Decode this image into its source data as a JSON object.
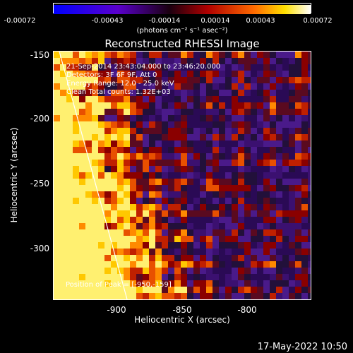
{
  "colorbar": {
    "ticks": [
      "-0.00072",
      "-0.00043",
      "-0.00014",
      "0.00014",
      "0.00043",
      "0.00072"
    ],
    "units": "(photons cm⁻² s⁻¹ asec⁻²)",
    "colors": [
      "#0000ff",
      "#5a00cc",
      "#1a0010",
      "#b00000",
      "#ff6a00",
      "#ffe000",
      "#ffffff"
    ]
  },
  "plot": {
    "title": "Reconstructed RHESSI Image",
    "info": [
      "21-Sep-2014 23:43:04.000 to 23:46:20.000",
      "Detectors: 3F 6F 9F, Att 0",
      "Energy Range: 12.0 - 25.0 keV",
      "Clean    Total counts: 1.32E+03"
    ],
    "peak": "Position of Peak = [-950,-159]",
    "yticks": [
      "-150",
      "-200",
      "-250",
      "-300"
    ],
    "xticks": [
      "-900",
      "-850",
      "-800"
    ],
    "ylabel": "Heliocentric Y (arcsec)",
    "xlabel": "Heliocentric X (arcsec)"
  },
  "footer": {
    "timestamp": "17-May-2022 10:50"
  }
}
